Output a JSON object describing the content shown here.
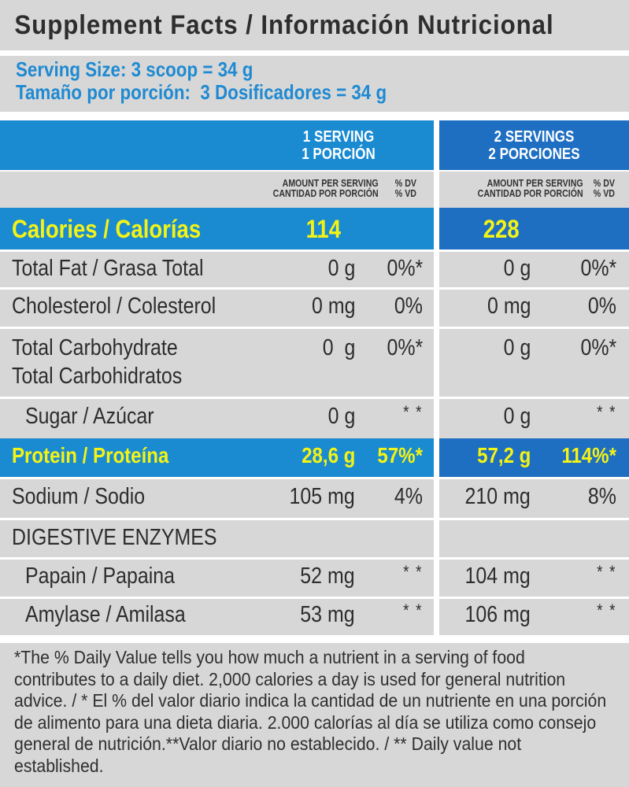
{
  "title": "Supplement Facts / Información Nutricional",
  "serving": {
    "size_en": "Serving Size: 3 scoop = 34 g",
    "size_es": "Tamaño por porción:  3 Dosificadores = 34 g"
  },
  "columns": {
    "one": {
      "line1": "1 SERVING",
      "line2": "1 PORCIÓN"
    },
    "two": {
      "line1": "2 SERVINGS",
      "line2": "2 PORCIONES"
    },
    "amount_en": "AMOUNT PER SERVING",
    "amount_es": "CANTIDAD POR PORCIÓN",
    "dv_en": "% DV",
    "dv_es": "% VD"
  },
  "calories": {
    "label": "Calories / Calorías",
    "one": "114",
    "two": "228"
  },
  "rows": [
    {
      "label": "Total Fat / Grasa Total",
      "one_amt": "0 g",
      "one_dv": "0%*",
      "two_amt": "0 g",
      "two_dv": "0%*"
    },
    {
      "label": "Cholesterol / Colesterol",
      "one_amt": "0 mg",
      "one_dv": "0%",
      "two_amt": "0 mg",
      "two_dv": "0%"
    },
    {
      "label": "Total Carbohydrate",
      "label2": "Total Carbohidratos",
      "one_amt": "0  g",
      "one_dv": "0%*",
      "two_amt": "0 g",
      "two_dv": "0%*"
    },
    {
      "label": "Sugar / Azúcar",
      "one_amt": "0 g",
      "one_dv": "* *",
      "two_amt": "0 g",
      "two_dv": "* *"
    }
  ],
  "protein": {
    "label": "Protein / Proteína",
    "one_amt": "28,6 g",
    "one_dv": "57%*",
    "two_amt": "57,2 g",
    "two_dv": "114%*"
  },
  "sodium": {
    "label": "Sodium / Sodio",
    "one_amt": "105 mg",
    "one_dv": "4%",
    "two_amt": "210 mg",
    "two_dv": "8%"
  },
  "enzymes_heading": "DIGESTIVE ENZYMES",
  "enzymes": [
    {
      "label": "Papain / Papaina",
      "one_amt": "52 mg",
      "one_dv": "* *",
      "two_amt": "104 mg",
      "two_dv": "* *"
    },
    {
      "label": "Amylase / Amilasa",
      "one_amt": "53 mg",
      "one_dv": "* *",
      "two_amt": "106 mg",
      "two_dv": "* *"
    }
  ],
  "footnote": [
    "*The % Daily Value tells you how much a nutrient in a serving of food",
    "contributes to a daily diet. 2,000 calories a day is used for general nutrition",
    "advice. / * El % del valor diario indica la cantidad de un nutriente en una porción",
    "de alimento para una dieta diaria. 2.000 calorías al día se utiliza como consejo",
    "general de nutrición.**Valor diario no establecido. / ** Daily value not",
    "established."
  ],
  "colors": {
    "blue_one": "#1a8ad1",
    "blue_two": "#1e6ec2",
    "highlight": "#f3f315",
    "background": "#d7d7d7"
  }
}
